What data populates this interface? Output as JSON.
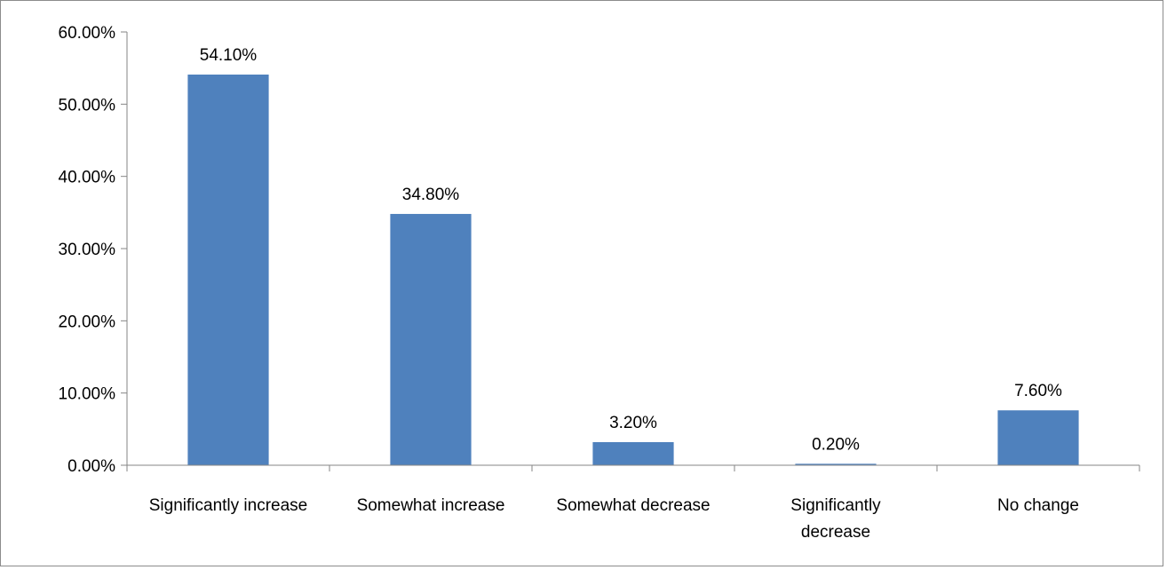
{
  "chart_data": {
    "type": "bar",
    "title": "",
    "xlabel": "",
    "ylabel": "",
    "categories": [
      "Significantly increase",
      "Somewhat increase",
      "Somewhat decrease",
      "Significantly decrease",
      "No change"
    ],
    "category_lines": [
      [
        "Significantly increase"
      ],
      [
        "Somewhat increase"
      ],
      [
        "Somewhat decrease"
      ],
      [
        "Significantly",
        "decrease"
      ],
      [
        "No change"
      ]
    ],
    "values": [
      54.1,
      34.8,
      3.2,
      0.2,
      7.6
    ],
    "data_labels": [
      "54.10%",
      "34.80%",
      "3.20%",
      "0.20%",
      "7.60%"
    ],
    "ylim": [
      0,
      60
    ],
    "yticks": [
      0,
      10,
      20,
      30,
      40,
      50,
      60
    ],
    "ytick_labels": [
      "0.00%",
      "10.00%",
      "20.00%",
      "30.00%",
      "40.00%",
      "50.00%",
      "60.00%"
    ],
    "grid": false,
    "legend": "none",
    "bar_color": "#4f81bd"
  }
}
